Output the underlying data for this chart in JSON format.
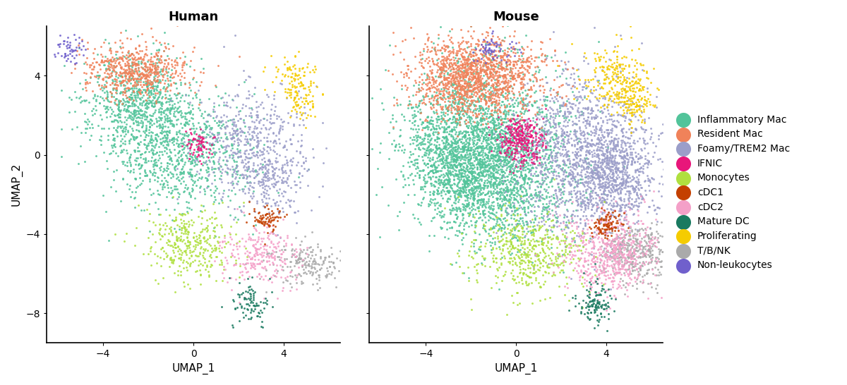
{
  "cell_types": [
    "Inflammatory Mac",
    "Resident Mac",
    "Foamy/TREM2 Mac",
    "IFNIC",
    "Monocytes",
    "cDC1",
    "cDC2",
    "Mature DC",
    "Proliferating",
    "T/B/NK",
    "Non-leukocytes"
  ],
  "colors": [
    "#52C49A",
    "#F0825A",
    "#9B9EC9",
    "#E8167A",
    "#B0E040",
    "#C44000",
    "#F4A0C8",
    "#1A7A60",
    "#F5CC00",
    "#AAAAAA",
    "#7060CC"
  ],
  "title_human": "Human",
  "title_mouse": "Mouse",
  "xlabel": "UMAP_1",
  "ylabel": "UMAP_2",
  "xlim": [
    -6.5,
    6.5
  ],
  "ylim": [
    -9.5,
    6.5
  ],
  "xticks": [
    -4,
    0,
    4
  ],
  "yticks": [
    -8,
    -4,
    0,
    4
  ],
  "point_size": 4.5,
  "alpha": 0.85,
  "background_color": "#ffffff"
}
